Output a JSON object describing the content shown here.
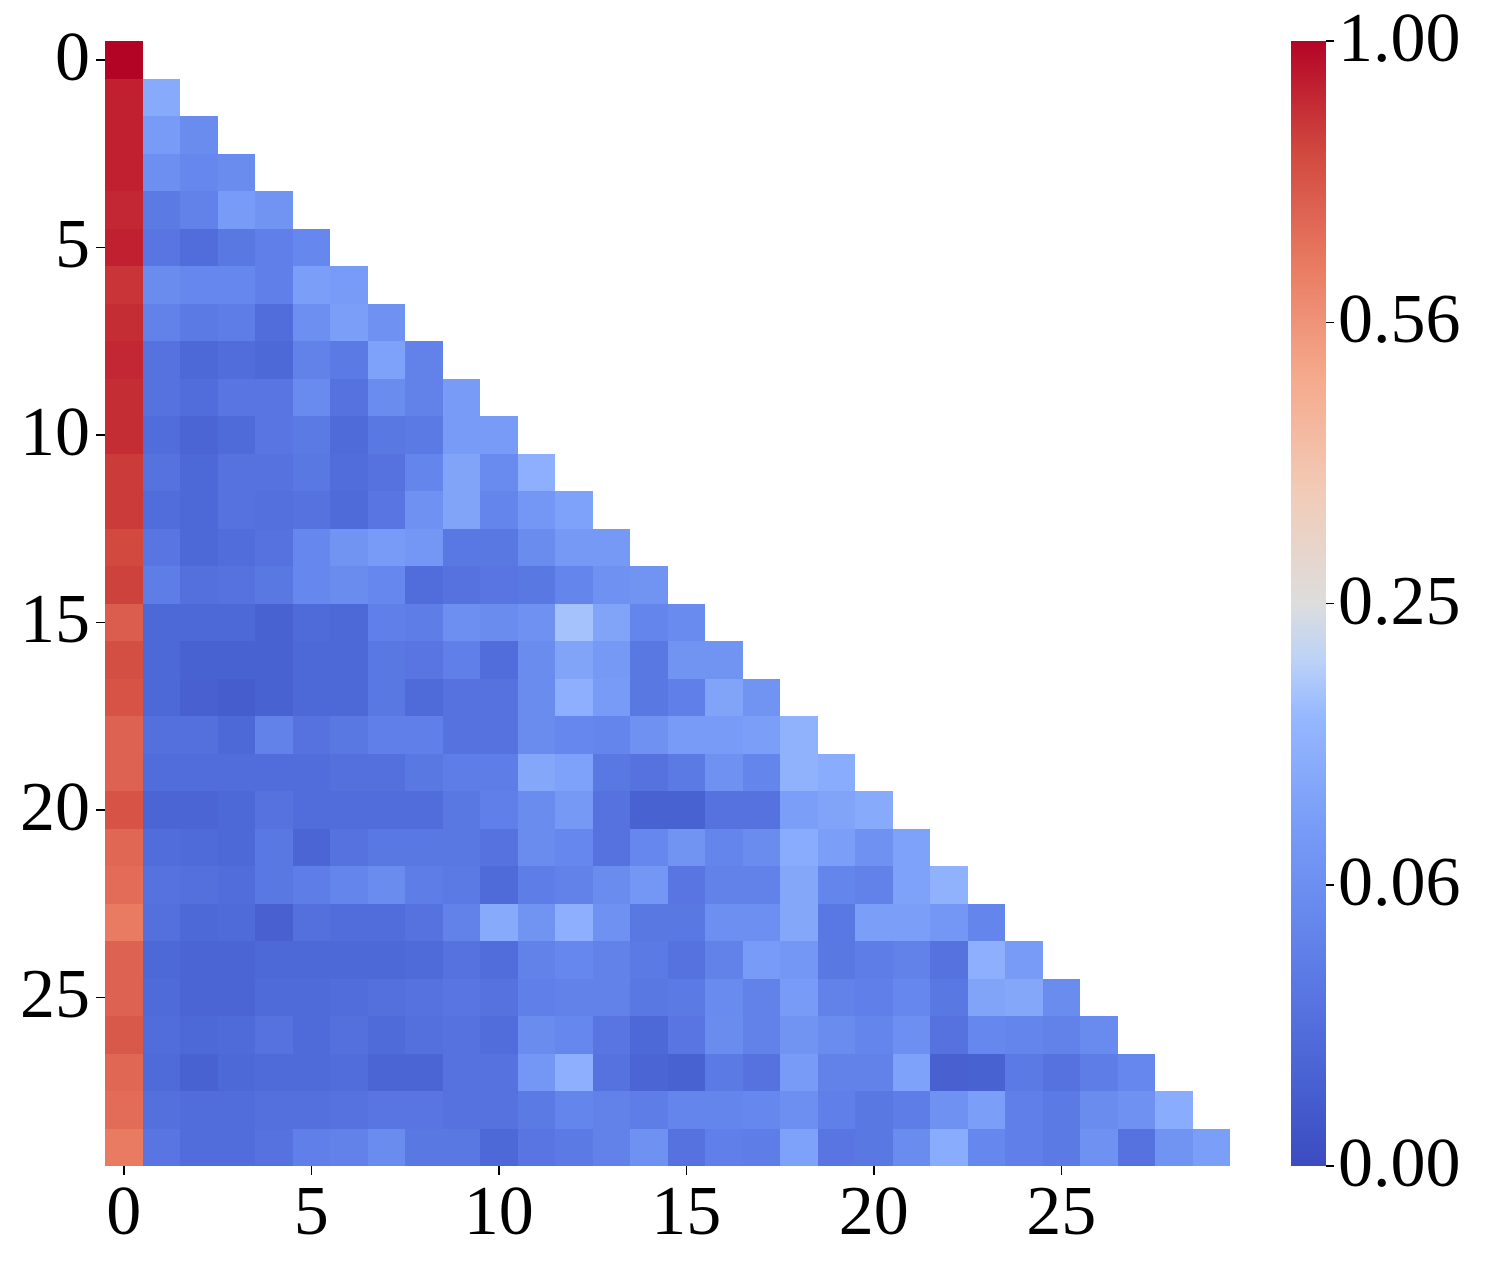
{
  "chart_data": {
    "type": "heatmap",
    "title": "",
    "xlabel": "",
    "ylabel": "",
    "colormap": "coolwarm",
    "color_scale": "power (sqrt): colorbar ticks equally spaced",
    "mask": "upper triangle (j > i) masked / blank",
    "n_rows": 30,
    "n_cols": 30,
    "x_tick_labels": [
      "0",
      "5",
      "10",
      "15",
      "20",
      "25"
    ],
    "x_tick_positions": [
      0,
      5,
      10,
      15,
      20,
      25
    ],
    "y_tick_labels": [
      "0",
      "5",
      "10",
      "15",
      "20",
      "25"
    ],
    "y_tick_positions": [
      0,
      5,
      10,
      15,
      20,
      25
    ],
    "colorbar": {
      "ticks": [
        1.0,
        0.56,
        0.25,
        0.06,
        0.0
      ],
      "tick_labels": [
        "1.00",
        "0.56",
        "0.25",
        "0.06",
        "0.00"
      ],
      "vmin": 0.0,
      "vmax": 1.0
    },
    "colors": {
      "low": "#3b4cc0",
      "mid": "#dddddd",
      "high": "#b40426"
    },
    "rows_t": [
      [
        1.0
      ],
      [
        0.96,
        0.35
      ],
      [
        0.96,
        0.3,
        0.24
      ],
      [
        0.96,
        0.25,
        0.22,
        0.24
      ],
      [
        0.95,
        0.17,
        0.2,
        0.3,
        0.27
      ],
      [
        0.96,
        0.15,
        0.12,
        0.16,
        0.19,
        0.22
      ],
      [
        0.93,
        0.24,
        0.22,
        0.22,
        0.19,
        0.31,
        0.3
      ],
      [
        0.94,
        0.2,
        0.17,
        0.18,
        0.12,
        0.25,
        0.31,
        0.26
      ],
      [
        0.95,
        0.14,
        0.1,
        0.12,
        0.1,
        0.2,
        0.17,
        0.32,
        0.2
      ],
      [
        0.94,
        0.14,
        0.12,
        0.15,
        0.15,
        0.23,
        0.14,
        0.24,
        0.2,
        0.3
      ],
      [
        0.94,
        0.12,
        0.09,
        0.11,
        0.15,
        0.17,
        0.11,
        0.16,
        0.17,
        0.3,
        0.3
      ],
      [
        0.92,
        0.14,
        0.1,
        0.14,
        0.14,
        0.16,
        0.12,
        0.14,
        0.21,
        0.33,
        0.23,
        0.37
      ],
      [
        0.92,
        0.12,
        0.1,
        0.14,
        0.13,
        0.14,
        0.11,
        0.15,
        0.26,
        0.33,
        0.21,
        0.28,
        0.32
      ],
      [
        0.9,
        0.15,
        0.1,
        0.12,
        0.14,
        0.22,
        0.27,
        0.3,
        0.28,
        0.16,
        0.16,
        0.24,
        0.29,
        0.29
      ],
      [
        0.91,
        0.18,
        0.13,
        0.14,
        0.16,
        0.22,
        0.24,
        0.22,
        0.12,
        0.14,
        0.15,
        0.16,
        0.21,
        0.26,
        0.27
      ],
      [
        0.86,
        0.1,
        0.1,
        0.1,
        0.08,
        0.11,
        0.1,
        0.19,
        0.18,
        0.25,
        0.24,
        0.26,
        0.42,
        0.33,
        0.21,
        0.23
      ],
      [
        0.89,
        0.1,
        0.08,
        0.08,
        0.08,
        0.1,
        0.1,
        0.16,
        0.15,
        0.19,
        0.12,
        0.24,
        0.33,
        0.29,
        0.16,
        0.27,
        0.27
      ],
      [
        0.88,
        0.1,
        0.07,
        0.06,
        0.08,
        0.1,
        0.1,
        0.16,
        0.11,
        0.14,
        0.14,
        0.24,
        0.37,
        0.3,
        0.16,
        0.19,
        0.33,
        0.27
      ],
      [
        0.85,
        0.13,
        0.13,
        0.1,
        0.2,
        0.14,
        0.16,
        0.19,
        0.19,
        0.14,
        0.14,
        0.24,
        0.22,
        0.21,
        0.26,
        0.3,
        0.3,
        0.31,
        0.38
      ],
      [
        0.85,
        0.12,
        0.12,
        0.12,
        0.12,
        0.12,
        0.13,
        0.13,
        0.16,
        0.18,
        0.18,
        0.34,
        0.32,
        0.16,
        0.14,
        0.17,
        0.26,
        0.21,
        0.38,
        0.36
      ],
      [
        0.88,
        0.09,
        0.09,
        0.1,
        0.14,
        0.12,
        0.12,
        0.12,
        0.12,
        0.16,
        0.19,
        0.24,
        0.29,
        0.14,
        0.08,
        0.08,
        0.14,
        0.14,
        0.31,
        0.33,
        0.35
      ],
      [
        0.84,
        0.12,
        0.11,
        0.1,
        0.16,
        0.09,
        0.14,
        0.16,
        0.16,
        0.16,
        0.14,
        0.24,
        0.22,
        0.14,
        0.22,
        0.27,
        0.21,
        0.24,
        0.36,
        0.31,
        0.26,
        0.32
      ],
      [
        0.83,
        0.14,
        0.13,
        0.12,
        0.16,
        0.18,
        0.21,
        0.24,
        0.18,
        0.17,
        0.11,
        0.18,
        0.2,
        0.24,
        0.28,
        0.15,
        0.2,
        0.2,
        0.34,
        0.21,
        0.2,
        0.32,
        0.38
      ],
      [
        0.8,
        0.13,
        0.1,
        0.11,
        0.07,
        0.13,
        0.12,
        0.12,
        0.14,
        0.2,
        0.35,
        0.27,
        0.37,
        0.26,
        0.16,
        0.16,
        0.25,
        0.25,
        0.34,
        0.16,
        0.31,
        0.31,
        0.28,
        0.21
      ],
      [
        0.85,
        0.1,
        0.09,
        0.09,
        0.1,
        0.1,
        0.1,
        0.1,
        0.11,
        0.14,
        0.12,
        0.2,
        0.22,
        0.2,
        0.17,
        0.14,
        0.2,
        0.3,
        0.28,
        0.16,
        0.18,
        0.2,
        0.14,
        0.37,
        0.3
      ],
      [
        0.85,
        0.11,
        0.09,
        0.09,
        0.11,
        0.11,
        0.12,
        0.13,
        0.14,
        0.15,
        0.14,
        0.19,
        0.2,
        0.2,
        0.16,
        0.17,
        0.23,
        0.2,
        0.3,
        0.2,
        0.19,
        0.22,
        0.16,
        0.33,
        0.34,
        0.24
      ],
      [
        0.87,
        0.12,
        0.1,
        0.11,
        0.14,
        0.11,
        0.13,
        0.11,
        0.13,
        0.14,
        0.12,
        0.24,
        0.22,
        0.15,
        0.1,
        0.15,
        0.24,
        0.2,
        0.27,
        0.24,
        0.21,
        0.25,
        0.14,
        0.22,
        0.21,
        0.2,
        0.23
      ],
      [
        0.84,
        0.11,
        0.08,
        0.1,
        0.11,
        0.11,
        0.12,
        0.09,
        0.09,
        0.14,
        0.14,
        0.28,
        0.37,
        0.14,
        0.09,
        0.08,
        0.17,
        0.14,
        0.3,
        0.2,
        0.2,
        0.32,
        0.07,
        0.08,
        0.17,
        0.14,
        0.18,
        0.22
      ],
      [
        0.83,
        0.13,
        0.12,
        0.12,
        0.13,
        0.13,
        0.14,
        0.15,
        0.15,
        0.14,
        0.14,
        0.17,
        0.21,
        0.2,
        0.18,
        0.21,
        0.21,
        0.22,
        0.25,
        0.19,
        0.16,
        0.18,
        0.26,
        0.31,
        0.19,
        0.17,
        0.24,
        0.26,
        0.36
      ],
      [
        0.8,
        0.15,
        0.12,
        0.12,
        0.14,
        0.19,
        0.2,
        0.24,
        0.16,
        0.16,
        0.1,
        0.15,
        0.17,
        0.2,
        0.26,
        0.14,
        0.19,
        0.18,
        0.32,
        0.15,
        0.16,
        0.24,
        0.36,
        0.22,
        0.19,
        0.17,
        0.26,
        0.14,
        0.27,
        0.31
      ]
    ],
    "rows_t_note": "Each entry is the normalized colorbar position t in [0,1]; the approximate value is t^2 (since colorbar ticks 1.00/0.56/0.25/0.06/0.00 are equally spaced)."
  }
}
